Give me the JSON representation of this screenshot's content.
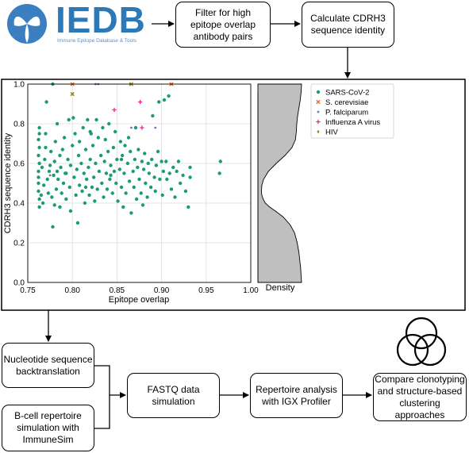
{
  "logo": {
    "wordmark": "IEDB",
    "tagline": "Immune Epitope Database & Tools",
    "color": "#2d79b8"
  },
  "steps": {
    "filter": "Filter for high\nepitope overlap\nantibody pairs",
    "cdrh3": "Calculate CDRH3\nsequence identity",
    "backtranslation": "Nucleotide sequence\nbacktranslation",
    "repertoire_sim": "B-cell repertoire\nsimulation with\nImmuneSim",
    "fastq": "FASTQ data\nsimulation",
    "repertoire_analysis": "Repertoire analysis\nwith IGX Profiler",
    "compare": "Compare clonotyping\nand structure-based\nclustering approaches"
  },
  "chart_data": {
    "type": "scatter",
    "xlabel": "Epitope overlap",
    "ylabel": "CDRH3 sequence identity",
    "xlim": [
      0.75,
      1.0
    ],
    "ylim": [
      0.0,
      1.0
    ],
    "xticks": [
      "0.75",
      "0.80",
      "0.85",
      "0.90",
      "0.95",
      "1.00"
    ],
    "yticks": [
      "0.0",
      "0.2",
      "0.4",
      "0.6",
      "0.8",
      "1.0"
    ],
    "grid": true,
    "legend_position": "top-right, outside plot",
    "density_label": "Density",
    "series": [
      {
        "name": "SARS-CoV-2",
        "marker": "circle",
        "color": "#1a9c73",
        "points": [
          [
            0.763,
            0.38
          ],
          [
            0.763,
            0.42
          ],
          [
            0.762,
            0.46
          ],
          [
            0.762,
            0.5
          ],
          [
            0.762,
            0.53
          ],
          [
            0.762,
            0.56
          ],
          [
            0.763,
            0.6
          ],
          [
            0.762,
            0.64
          ],
          [
            0.763,
            0.68
          ],
          [
            0.762,
            0.72
          ],
          [
            0.763,
            0.75
          ],
          [
            0.763,
            0.78
          ],
          [
            0.765,
            0.44
          ],
          [
            0.766,
            0.58
          ],
          [
            0.767,
            0.4
          ],
          [
            0.768,
            0.49
          ],
          [
            0.769,
            0.62
          ],
          [
            0.77,
            0.68
          ],
          [
            0.77,
            0.75
          ],
          [
            0.771,
            0.91
          ],
          [
            0.772,
            0.52
          ],
          [
            0.773,
            0.45
          ],
          [
            0.774,
            0.56
          ],
          [
            0.775,
            0.59
          ],
          [
            0.776,
            0.66
          ],
          [
            0.777,
            0.43
          ],
          [
            0.778,
            0.28
          ],
          [
            0.779,
            0.54
          ],
          [
            0.78,
            0.39
          ],
          [
            0.78,
            0.61
          ],
          [
            0.781,
            0.71
          ],
          [
            0.782,
            0.47
          ],
          [
            0.783,
            0.8
          ],
          [
            0.783,
            0.56
          ],
          [
            0.784,
            0.52
          ],
          [
            0.786,
            0.38
          ],
          [
            0.786,
            0.64
          ],
          [
            0.787,
            0.58
          ],
          [
            0.788,
            0.45
          ],
          [
            0.789,
            0.67
          ],
          [
            0.79,
            0.5
          ],
          [
            0.791,
            0.73
          ],
          [
            0.792,
            0.55
          ],
          [
            0.793,
            0.42
          ],
          [
            0.795,
            0.62
          ],
          [
            0.796,
            0.82
          ],
          [
            0.797,
            0.48
          ],
          [
            0.798,
            0.36
          ],
          [
            0.798,
            0.59
          ],
          [
            0.8,
            0.69
          ],
          [
            0.801,
            0.83
          ],
          [
            0.802,
            0.53
          ],
          [
            0.803,
            0.75
          ],
          [
            0.804,
            0.44
          ],
          [
            0.805,
            0.57
          ],
          [
            0.806,
            0.3
          ],
          [
            0.807,
            0.64
          ],
          [
            0.808,
            0.49
          ],
          [
            0.808,
            0.71
          ],
          [
            0.81,
            0.6
          ],
          [
            0.811,
            0.46
          ],
          [
            0.812,
            0.78
          ],
          [
            0.813,
            0.55
          ],
          [
            0.814,
            0.4
          ],
          [
            0.815,
            0.67
          ],
          [
            0.816,
            0.52
          ],
          [
            0.817,
            0.82
          ],
          [
            0.818,
            0.58
          ],
          [
            0.819,
            0.44
          ],
          [
            0.82,
            0.62
          ],
          [
            0.821,
            0.75
          ],
          [
            0.822,
            0.48
          ],
          [
            0.823,
            0.69
          ],
          [
            0.824,
            0.53
          ],
          [
            0.825,
            0.41
          ],
          [
            0.826,
            0.6
          ],
          [
            0.827,
            0.82
          ],
          [
            0.828,
            0.47
          ],
          [
            0.829,
            0.73
          ],
          [
            0.83,
            0.56
          ],
          [
            0.832,
            0.64
          ],
          [
            0.833,
            0.5
          ],
          [
            0.834,
            0.78
          ],
          [
            0.835,
            0.43
          ],
          [
            0.836,
            0.61
          ],
          [
            0.837,
            0.72
          ],
          [
            0.838,
            0.55
          ],
          [
            0.839,
            0.47
          ],
          [
            0.84,
            0.66
          ],
          [
            0.841,
            0.8
          ],
          [
            0.842,
            0.52
          ],
          [
            0.843,
            0.59
          ],
          [
            0.845,
            0.45
          ],
          [
            0.846,
            0.68
          ],
          [
            0.847,
            0.56
          ],
          [
            0.848,
            0.76
          ],
          [
            0.849,
            0.5
          ],
          [
            0.85,
            0.62
          ],
          [
            0.851,
            0.41
          ],
          [
            0.853,
            0.57
          ],
          [
            0.854,
            0.71
          ],
          [
            0.855,
            0.48
          ],
          [
            0.856,
            0.64
          ],
          [
            0.857,
            0.38
          ],
          [
            0.858,
            0.55
          ],
          [
            0.859,
            0.69
          ],
          [
            0.86,
            0.45
          ],
          [
            0.862,
            0.6
          ],
          [
            0.863,
            0.73
          ],
          [
            0.864,
            0.51
          ],
          [
            0.865,
            0.66
          ],
          [
            0.866,
            0.35
          ],
          [
            0.868,
            0.56
          ],
          [
            0.869,
            0.48
          ],
          [
            0.87,
            0.62
          ],
          [
            0.871,
            0.78
          ],
          [
            0.872,
            0.42
          ],
          [
            0.873,
            0.58
          ],
          [
            0.874,
            0.67
          ],
          [
            0.875,
            0.52
          ],
          [
            0.877,
            0.45
          ],
          [
            0.878,
            0.61
          ],
          [
            0.879,
            0.39
          ],
          [
            0.88,
            0.57
          ],
          [
            0.881,
            0.65
          ],
          [
            0.882,
            0.5
          ],
          [
            0.884,
            0.43
          ],
          [
            0.885,
            0.6
          ],
          [
            0.886,
            0.55
          ],
          [
            0.888,
            0.48
          ],
          [
            0.889,
            0.62
          ],
          [
            0.89,
            0.84
          ],
          [
            0.892,
            0.53
          ],
          [
            0.893,
            0.46
          ],
          [
            0.894,
            0.59
          ],
          [
            0.896,
            0.66
          ],
          [
            0.897,
            0.91
          ],
          [
            0.898,
            0.52
          ],
          [
            0.9,
            0.61
          ],
          [
            0.901,
            0.44
          ],
          [
            0.902,
            0.56
          ],
          [
            0.903,
            0.92
          ],
          [
            0.905,
            0.61
          ],
          [
            0.906,
            0.52
          ],
          [
            0.908,
            0.94
          ],
          [
            0.909,
            0.55
          ],
          [
            0.911,
            0.47
          ],
          [
            0.913,
            0.58
          ],
          [
            0.915,
            0.43
          ],
          [
            0.917,
            0.56
          ],
          [
            0.919,
            0.61
          ],
          [
            0.921,
            0.5
          ],
          [
            0.924,
            0.54
          ],
          [
            0.927,
            0.46
          ],
          [
            0.93,
            0.38
          ],
          [
            0.932,
            0.53
          ],
          [
            0.932,
            0.58
          ],
          [
            0.965,
            0.55
          ],
          [
            0.966,
            0.61
          ],
          [
            0.778,
            1.0
          ],
          [
            0.82,
            0.76
          ],
          [
            0.855,
            0.62
          ],
          [
            0.793,
            0.55
          ],
          [
            0.815,
            0.48
          ],
          [
            0.843,
            0.54
          ]
        ]
      },
      {
        "name": "S. cerevisiae",
        "marker": "x",
        "color": "#d8641a",
        "points": [
          [
            0.8,
            1.0
          ],
          [
            0.866,
            1.0
          ],
          [
            0.911,
            1.0
          ],
          [
            0.8,
            0.95
          ]
        ]
      },
      {
        "name": "P. falciparum",
        "marker": "dot",
        "color": "#7570b3",
        "points": [
          [
            0.826,
            1.0
          ],
          [
            0.829,
            1.0
          ],
          [
            0.866,
            0.78
          ],
          [
            0.893,
            0.78
          ],
          [
            0.775,
            0.54
          ]
        ]
      },
      {
        "name": "Influenza A virus",
        "marker": "plus",
        "color": "#e7298a",
        "points": [
          [
            0.847,
            0.87
          ],
          [
            0.876,
            0.91
          ],
          [
            0.878,
            0.78
          ]
        ]
      },
      {
        "name": "HIV",
        "marker": "diamond",
        "color": "#66a61e",
        "points": [
          [
            0.8,
            0.95
          ],
          [
            0.865,
            1.0
          ]
        ]
      }
    ],
    "density": {
      "fill": "#bfbfbf",
      "curve": [
        [
          0.0,
          1.0
        ],
        [
          0.03,
          0.99
        ],
        [
          0.07,
          0.98
        ],
        [
          0.11,
          0.96
        ],
        [
          0.15,
          0.94
        ],
        [
          0.2,
          0.9
        ],
        [
          0.25,
          0.84
        ],
        [
          0.29,
          0.74
        ],
        [
          0.33,
          0.58
        ],
        [
          0.36,
          0.4
        ],
        [
          0.38,
          0.27
        ],
        [
          0.4,
          0.17
        ],
        [
          0.42,
          0.12
        ],
        [
          0.44,
          0.09
        ],
        [
          0.46,
          0.08
        ],
        [
          0.49,
          0.09
        ],
        [
          0.52,
          0.13
        ],
        [
          0.56,
          0.24
        ],
        [
          0.6,
          0.42
        ],
        [
          0.64,
          0.62
        ],
        [
          0.68,
          0.78
        ],
        [
          0.72,
          0.86
        ],
        [
          0.76,
          0.88
        ],
        [
          0.8,
          0.89
        ],
        [
          0.84,
          0.91
        ],
        [
          0.88,
          0.94
        ],
        [
          0.92,
          0.97
        ],
        [
          0.96,
          0.99
        ],
        [
          1.0,
          1.0
        ]
      ]
    }
  }
}
